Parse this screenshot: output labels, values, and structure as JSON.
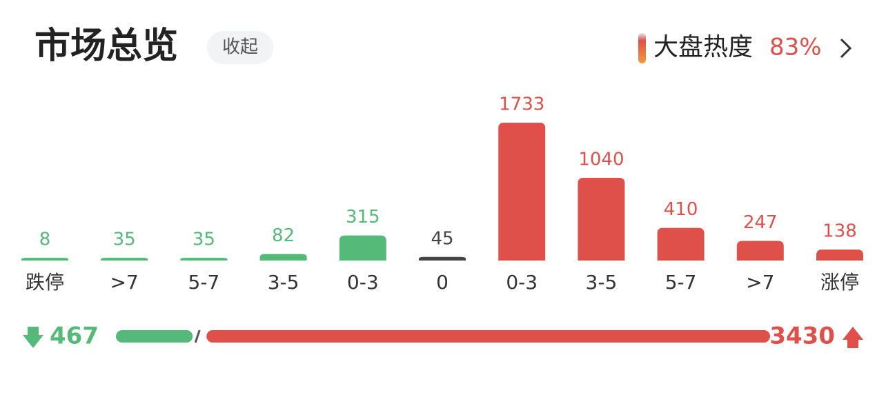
{
  "header": {
    "title": "市场总览",
    "collapse": "收起",
    "heat_label": "大盘热度",
    "heat_value": "83%"
  },
  "chart_data": {
    "type": "bar",
    "categories": [
      "跌停",
      ">7",
      "5-7",
      "3-5",
      "0-3",
      "0",
      "0-3",
      "3-5",
      "5-7",
      ">7",
      "涨停"
    ],
    "values": [
      8,
      35,
      35,
      82,
      315,
      45,
      1733,
      1040,
      410,
      247,
      138
    ],
    "colors": [
      "#55b97a",
      "#55b97a",
      "#55b97a",
      "#55b97a",
      "#55b97a",
      "#444444",
      "#e0504a",
      "#e0504a",
      "#e0504a",
      "#e0504a",
      "#e0504a"
    ]
  },
  "summary": {
    "down": 467,
    "up": 3430,
    "down_color": "#55b97a",
    "up_color": "#e0504a"
  }
}
